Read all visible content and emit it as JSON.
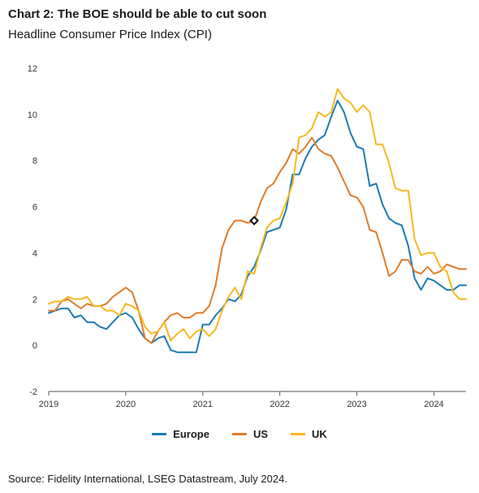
{
  "chart_data": {
    "type": "line",
    "title": "Chart 2: The BOE should be able to cut soon",
    "subtitle": "Headline Consumer Price Index (CPI)",
    "source": "Source: Fidelity International, LSEG Datastream, July 2024.",
    "ylim": [
      -2,
      12
    ],
    "yticks": [
      -2,
      0,
      2,
      4,
      6,
      8,
      10,
      12
    ],
    "xlim": [
      2019.0,
      2024.4167
    ],
    "xticks": [
      2019,
      2020,
      2021,
      2022,
      2023,
      2024
    ],
    "xtick_labels": [
      "2019",
      "2020",
      "2021",
      "2022",
      "2023",
      "2024"
    ],
    "legend": "bottom",
    "series": [
      {
        "name": "Europe",
        "color": "#1b7bb5",
        "x": [
          2019.0,
          2019.083,
          2019.167,
          2019.25,
          2019.333,
          2019.417,
          2019.5,
          2019.583,
          2019.667,
          2019.75,
          2019.833,
          2019.917,
          2020.0,
          2020.083,
          2020.167,
          2020.25,
          2020.333,
          2020.417,
          2020.5,
          2020.583,
          2020.667,
          2020.75,
          2020.833,
          2020.917,
          2021.0,
          2021.083,
          2021.167,
          2021.25,
          2021.333,
          2021.417,
          2021.5,
          2021.583,
          2021.667,
          2021.75,
          2021.833,
          2021.917,
          2022.0,
          2022.083,
          2022.167,
          2022.25,
          2022.333,
          2022.417,
          2022.5,
          2022.583,
          2022.667,
          2022.75,
          2022.833,
          2022.917,
          2023.0,
          2023.083,
          2023.167,
          2023.25,
          2023.333,
          2023.417,
          2023.5,
          2023.583,
          2023.667,
          2023.75,
          2023.833,
          2023.917,
          2024.0,
          2024.083,
          2024.167,
          2024.25,
          2024.333,
          2024.417
        ],
        "values": [
          1.4,
          1.5,
          1.6,
          1.6,
          1.2,
          1.3,
          1.0,
          1.0,
          0.8,
          0.7,
          1.0,
          1.3,
          1.4,
          1.2,
          0.7,
          0.3,
          0.1,
          0.3,
          0.4,
          -0.2,
          -0.3,
          -0.3,
          -0.3,
          -0.3,
          0.9,
          0.9,
          1.3,
          1.6,
          2.0,
          1.9,
          2.2,
          3.0,
          3.4,
          4.1,
          4.9,
          5.0,
          5.1,
          5.9,
          7.4,
          7.4,
          8.1,
          8.6,
          8.9,
          9.1,
          9.9,
          10.6,
          10.1,
          9.2,
          8.6,
          8.5,
          6.9,
          7.0,
          6.1,
          5.5,
          5.3,
          5.2,
          4.3,
          2.9,
          2.4,
          2.9,
          2.8,
          2.6,
          2.4,
          2.4,
          2.6,
          2.6
        ]
      },
      {
        "name": "US",
        "color": "#e07b2c",
        "x": [
          2019.0,
          2019.083,
          2019.167,
          2019.25,
          2019.333,
          2019.417,
          2019.5,
          2019.583,
          2019.667,
          2019.75,
          2019.833,
          2019.917,
          2020.0,
          2020.083,
          2020.167,
          2020.25,
          2020.333,
          2020.417,
          2020.5,
          2020.583,
          2020.667,
          2020.75,
          2020.833,
          2020.917,
          2021.0,
          2021.083,
          2021.167,
          2021.25,
          2021.333,
          2021.417,
          2021.5,
          2021.583,
          2021.667,
          2021.75,
          2021.833,
          2021.917,
          2022.0,
          2022.083,
          2022.167,
          2022.25,
          2022.333,
          2022.417,
          2022.5,
          2022.583,
          2022.667,
          2022.75,
          2022.833,
          2022.917,
          2023.0,
          2023.083,
          2023.167,
          2023.25,
          2023.333,
          2023.417,
          2023.5,
          2023.583,
          2023.667,
          2023.75,
          2023.833,
          2023.917,
          2024.0,
          2024.083,
          2024.167,
          2024.25,
          2024.333,
          2024.417
        ],
        "values": [
          1.5,
          1.5,
          1.9,
          2.0,
          1.8,
          1.6,
          1.8,
          1.7,
          1.7,
          1.8,
          2.1,
          2.3,
          2.5,
          2.3,
          1.5,
          0.3,
          0.1,
          0.6,
          1.0,
          1.3,
          1.4,
          1.2,
          1.2,
          1.4,
          1.4,
          1.7,
          2.6,
          4.2,
          5.0,
          5.4,
          5.4,
          5.3,
          5.4,
          6.2,
          6.8,
          7.0,
          7.5,
          7.9,
          8.5,
          8.3,
          8.6,
          9.0,
          8.5,
          8.3,
          8.2,
          7.7,
          7.1,
          6.5,
          6.4,
          6.0,
          5.0,
          4.9,
          4.0,
          3.0,
          3.2,
          3.7,
          3.7,
          3.2,
          3.1,
          3.4,
          3.1,
          3.2,
          3.5,
          3.4,
          3.3,
          3.3
        ]
      },
      {
        "name": "UK",
        "color": "#f5b921",
        "x": [
          2019.0,
          2019.083,
          2019.167,
          2019.25,
          2019.333,
          2019.417,
          2019.5,
          2019.583,
          2019.667,
          2019.75,
          2019.833,
          2019.917,
          2020.0,
          2020.083,
          2020.167,
          2020.25,
          2020.333,
          2020.417,
          2020.5,
          2020.583,
          2020.667,
          2020.75,
          2020.833,
          2020.917,
          2021.0,
          2021.083,
          2021.167,
          2021.25,
          2021.333,
          2021.417,
          2021.5,
          2021.583,
          2021.667,
          2021.75,
          2021.833,
          2021.917,
          2022.0,
          2022.083,
          2022.167,
          2022.25,
          2022.333,
          2022.417,
          2022.5,
          2022.583,
          2022.667,
          2022.75,
          2022.833,
          2022.917,
          2023.0,
          2023.083,
          2023.167,
          2023.25,
          2023.333,
          2023.417,
          2023.5,
          2023.583,
          2023.667,
          2023.75,
          2023.833,
          2023.917,
          2024.0,
          2024.083,
          2024.167,
          2024.25,
          2024.333,
          2024.417
        ],
        "values": [
          1.8,
          1.9,
          1.9,
          2.1,
          2.0,
          2.0,
          2.1,
          1.7,
          1.7,
          1.5,
          1.5,
          1.3,
          1.8,
          1.7,
          1.5,
          0.8,
          0.5,
          0.6,
          1.0,
          0.2,
          0.5,
          0.7,
          0.3,
          0.6,
          0.7,
          0.4,
          0.7,
          1.5,
          2.1,
          2.5,
          2.0,
          3.2,
          3.1,
          4.2,
          5.1,
          5.4,
          5.5,
          6.2,
          7.0,
          9.0,
          9.1,
          9.4,
          10.1,
          9.9,
          10.1,
          11.1,
          10.7,
          10.5,
          10.1,
          10.4,
          10.1,
          8.7,
          8.7,
          7.9,
          6.8,
          6.7,
          6.7,
          4.6,
          3.9,
          4.0,
          4.0,
          3.4,
          3.2,
          2.3,
          2.0,
          2.0
        ]
      }
    ],
    "marker": {
      "series": "US",
      "x": 2021.667,
      "y": 5.4
    }
  }
}
